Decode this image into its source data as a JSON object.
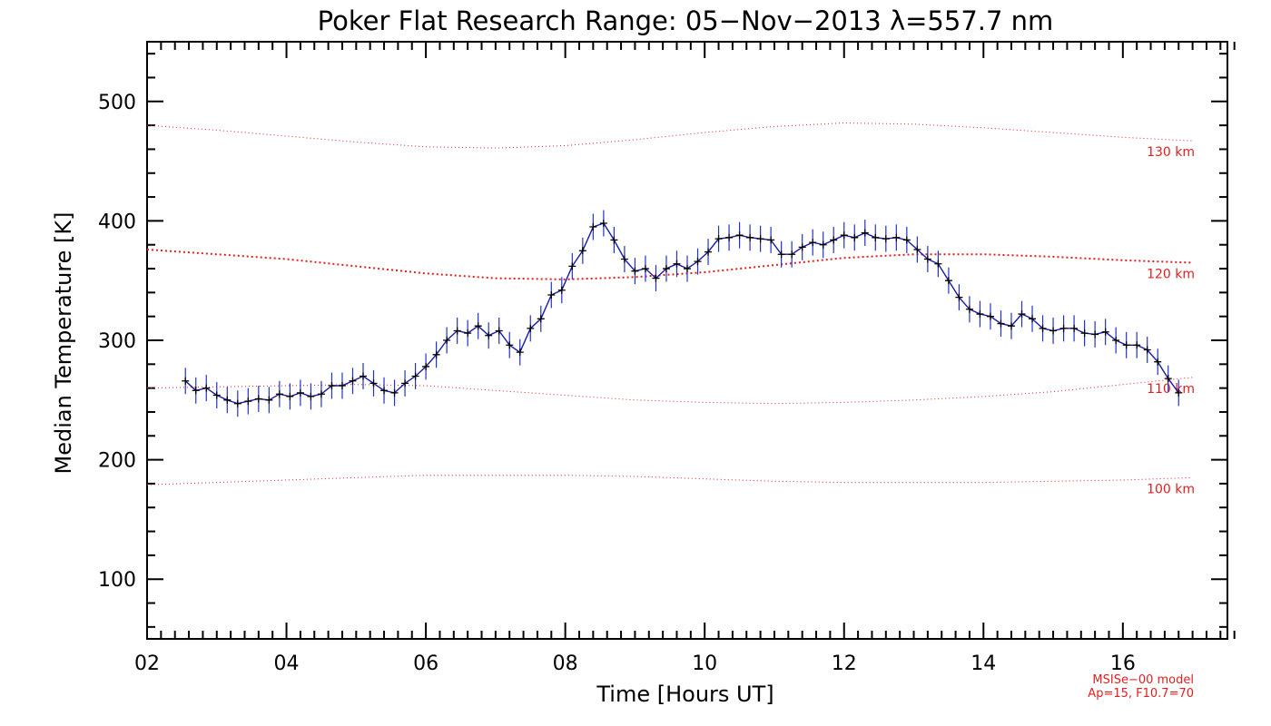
{
  "chart_data": {
    "type": "line",
    "title": "Poker Flat Research Range: 05−Nov−2013 λ=557.7 nm",
    "xlabel": "Time [Hours UT]",
    "ylabel": "Median Temperature [K]",
    "xlim": [
      2,
      17.5
    ],
    "ylim": [
      50,
      550
    ],
    "x_ticks": [
      2,
      4,
      6,
      8,
      10,
      12,
      14,
      16
    ],
    "x_tick_labels": [
      "02",
      "04",
      "06",
      "08",
      "10",
      "12",
      "14",
      "16"
    ],
    "y_ticks": [
      100,
      200,
      300,
      400,
      500
    ],
    "y_tick_labels": [
      "100",
      "200",
      "300",
      "400",
      "500"
    ],
    "grid": false,
    "colors": {
      "measurement_line": "#1a1aa6",
      "error_bars": "#2233cc",
      "markers": "#000000",
      "model": "#e02020"
    },
    "measurement": {
      "x": [
        2.55,
        2.7,
        2.85,
        3.0,
        3.15,
        3.3,
        3.45,
        3.6,
        3.75,
        3.9,
        4.05,
        4.2,
        4.35,
        4.5,
        4.65,
        4.8,
        4.95,
        5.1,
        5.25,
        5.4,
        5.55,
        5.7,
        5.85,
        6.0,
        6.15,
        6.3,
        6.45,
        6.6,
        6.75,
        6.9,
        7.05,
        7.2,
        7.35,
        7.5,
        7.65,
        7.8,
        7.95,
        8.1,
        8.25,
        8.4,
        8.55,
        8.7,
        8.85,
        9.0,
        9.15,
        9.3,
        9.45,
        9.6,
        9.75,
        9.9,
        10.05,
        10.2,
        10.35,
        10.5,
        10.65,
        10.8,
        10.95,
        11.1,
        11.25,
        11.4,
        11.55,
        11.7,
        11.85,
        12.0,
        12.15,
        12.3,
        12.45,
        12.6,
        12.75,
        12.9,
        13.05,
        13.2,
        13.35,
        13.5,
        13.65,
        13.8,
        13.95,
        14.1,
        14.25,
        14.4,
        14.55,
        14.7,
        14.85,
        15.0,
        15.15,
        15.3,
        15.45,
        15.6,
        15.75,
        15.9,
        16.05,
        16.2,
        16.35,
        16.5,
        16.65,
        16.8
      ],
      "y": [
        266,
        258,
        260,
        254,
        250,
        247,
        249,
        251,
        250,
        255,
        253,
        256,
        253,
        255,
        262,
        262,
        266,
        270,
        264,
        258,
        256,
        264,
        270,
        278,
        288,
        300,
        308,
        306,
        312,
        304,
        308,
        296,
        290,
        310,
        318,
        338,
        342,
        362,
        375,
        395,
        398,
        384,
        368,
        358,
        360,
        352,
        360,
        364,
        360,
        366,
        374,
        385,
        386,
        388,
        386,
        385,
        384,
        372,
        372,
        378,
        382,
        380,
        384,
        388,
        386,
        390,
        386,
        385,
        386,
        384,
        376,
        368,
        364,
        350,
        336,
        326,
        322,
        320,
        314,
        312,
        322,
        318,
        310,
        308,
        310,
        310,
        306,
        305,
        307,
        300,
        296,
        296,
        292,
        282,
        268,
        256
      ],
      "error": 11
    },
    "model_curves": [
      {
        "label": "130 km",
        "x": [
          2,
          3,
          4,
          5,
          6,
          7,
          8,
          9,
          10,
          11,
          12,
          13,
          14,
          15,
          16,
          17
        ],
        "y": [
          480,
          476,
          471,
          466,
          462,
          461,
          463,
          468,
          474,
          479,
          482,
          481,
          478,
          474,
          470,
          467
        ]
      },
      {
        "label": "120 km",
        "x": [
          2,
          3,
          4,
          5,
          6,
          7,
          8,
          9,
          10,
          11,
          12,
          13,
          14,
          15,
          16,
          17
        ],
        "y": [
          376,
          372,
          368,
          362,
          356,
          352,
          351,
          353,
          357,
          363,
          369,
          372,
          372,
          370,
          367,
          365
        ]
      },
      {
        "label": "110 km",
        "x": [
          2,
          3,
          4,
          5,
          6,
          7,
          8,
          9,
          10,
          11,
          12,
          13,
          14,
          15,
          16,
          17
        ],
        "y": [
          260,
          261,
          262,
          263,
          262,
          258,
          254,
          250,
          248,
          247,
          248,
          250,
          253,
          257,
          263,
          269
        ]
      },
      {
        "label": "100 km",
        "x": [
          2,
          3,
          4,
          5,
          6,
          7,
          8,
          9,
          10,
          11,
          12,
          13,
          14,
          15,
          16,
          17
        ],
        "y": [
          179,
          181,
          183,
          185,
          187,
          187,
          187,
          186,
          184,
          182,
          181,
          181,
          181,
          182,
          183,
          185
        ]
      }
    ],
    "model_note_line1": "MSISe−00 model",
    "model_note_line2": "Ap=15, F10.7=70"
  }
}
